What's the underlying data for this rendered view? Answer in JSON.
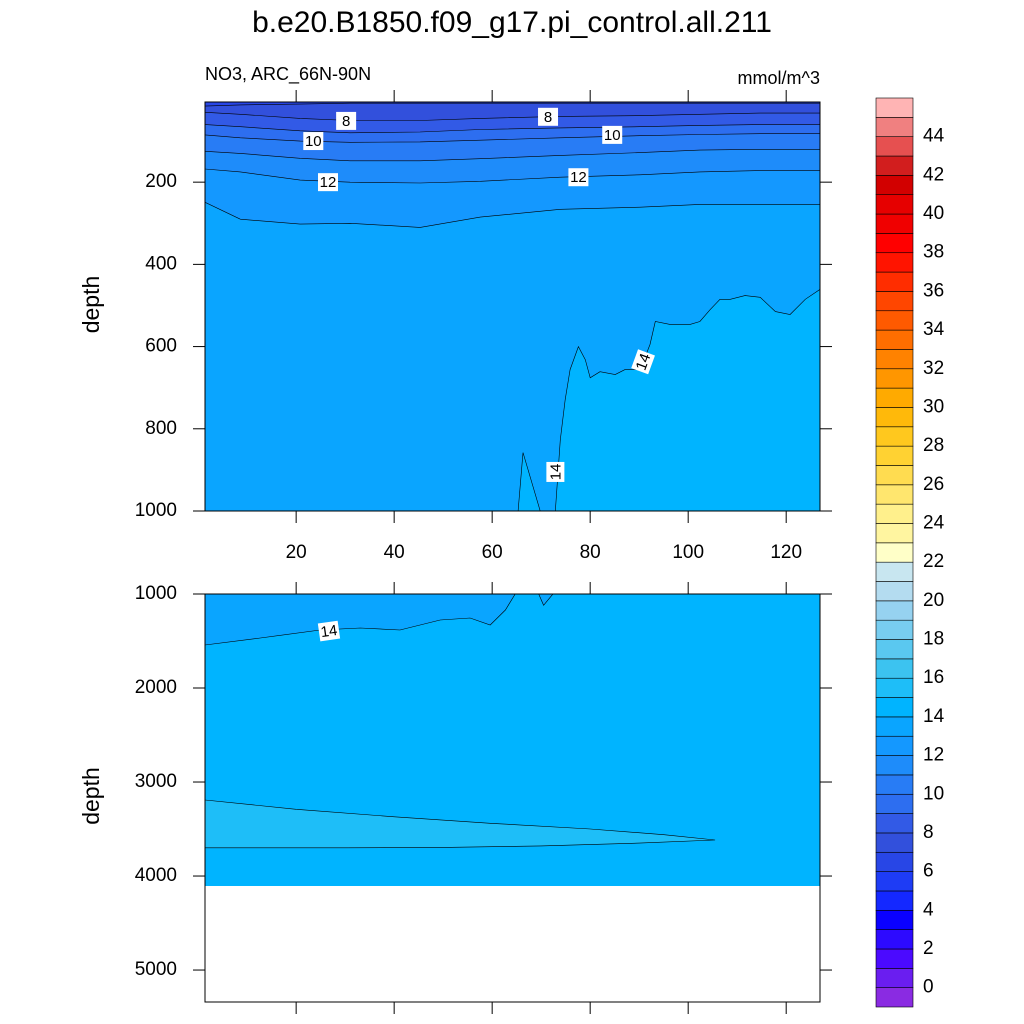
{
  "chart_data": {
    "type": "contour",
    "title": "b.e20.B1850.f09_g17.pi_control.all.211",
    "subtitle": "NO3, ARC_66N-90N",
    "units": "mmol/m^3",
    "panels": [
      {
        "ylabel": "depth",
        "xlim": [
          1.4,
          126.9
        ],
        "ylim": [
          5,
          1000
        ],
        "xticks": [
          20,
          40,
          60,
          80,
          100,
          120
        ],
        "yticks": [
          200,
          400,
          600,
          800,
          1000
        ],
        "xticklabels": true,
        "contours": [
          {
            "level": 7,
            "x": [
              1.4,
              8.6,
              20.8,
              31,
              45.3,
              57.6,
              73.9,
              90.2,
              102.4,
              114.7,
              126.9
            ],
            "depth": [
              15,
              12,
              10,
              8,
              8,
              8,
              8,
              8,
              8,
              8,
              8
            ]
          },
          {
            "level": 8,
            "x": [
              1.4,
              8.6,
              20.8,
              31,
              45.3,
              57.6,
              73.9,
              90.2,
              102.4,
              114.7,
              126.9
            ],
            "depth": [
              30,
              35,
              45,
              50,
              50,
              45,
              40,
              38,
              35,
              32,
              32
            ]
          },
          {
            "level": 9,
            "x": [
              1.4,
              8.6,
              20.8,
              31,
              45.3,
              57.6,
              73.9,
              90.2,
              102.4,
              114.7,
              126.9
            ],
            "depth": [
              60,
              65,
              75,
              80,
              78,
              72,
              68,
              65,
              62,
              60,
              60
            ]
          },
          {
            "level": 10,
            "x": [
              1.4,
              8.6,
              20.8,
              31,
              45.3,
              57.6,
              73.9,
              90.2,
              102.4,
              114.7,
              126.9
            ],
            "depth": [
              85,
              92,
              100,
              103,
              102,
              98,
              92,
              87,
              84,
              82,
              82
            ]
          },
          {
            "level": 11,
            "x": [
              1.4,
              8.6,
              20.8,
              31,
              45.3,
              57.6,
              73.9,
              90.2,
              102.4,
              114.7,
              126.9
            ],
            "depth": [
              125,
              130,
              142,
              148,
              148,
              143,
              135,
              128,
              122,
              120,
              120
            ]
          },
          {
            "level": 12,
            "x": [
              1.4,
              8.6,
              20.8,
              31,
              45.3,
              57.6,
              73.9,
              90.2,
              102.4,
              114.7,
              126.9
            ],
            "depth": [
              168,
              175,
              195,
              200,
              202,
              198,
              188,
              182,
              175,
              172,
              172
            ]
          },
          {
            "level": 13,
            "x": [
              1.4,
              8.6,
              20.8,
              31,
              45.3,
              57.6,
              73.9,
              90.2,
              102.4,
              114.7,
              126.9
            ],
            "depth": [
              249,
              290,
              302,
              300,
              310,
              285,
              266,
              261,
              254,
              254,
              254
            ]
          },
          {
            "level": 14,
            "x": [
              126.9,
              123.9,
              120.8,
              117.8,
              114.7,
              111.6,
              108.6,
              106.5,
              104.5,
              102.4,
              100.4,
              96.3,
              93.3,
              92.2,
              90.2,
              87.1,
              85.1,
              82.0,
              80.0,
              79.0,
              77.6,
              75.9,
              74.9,
              73.9,
              72.9,
              72.9,
              69.8,
              66.3,
              65.3,
              1.4
            ],
            "depth": [
              461,
              485,
              522,
              515,
              480,
              476,
              485,
              485,
              510,
              539,
              546,
              546,
              539,
              595,
              656,
              656,
              668,
              661,
              676,
              632,
              600,
              656,
              729,
              827,
              998,
              1000,
              1000,
              858,
              1000,
              1000
            ]
          }
        ]
      },
      {
        "ylabel": "depth",
        "xlim": [
          1.4,
          126.9
        ],
        "ylim": [
          1000,
          5340
        ],
        "xticks": [
          20,
          40,
          60,
          80,
          100,
          120
        ],
        "yticks": [
          1000,
          2000,
          3000,
          4000,
          5000
        ],
        "xticklabels": false,
        "data_depth_max": 4106,
        "contours": [
          {
            "level": 14,
            "x": [
              1.4,
              12.7,
              24.9,
              33.1,
              41.2,
              49.4,
              55.5,
              59.6,
              62.7,
              64.7,
              69.5,
              70.5,
              72.4
            ],
            "depth": [
              1543,
              1468,
              1383,
              1362,
              1383,
              1277,
              1255,
              1330,
              1170,
              1000,
              1000,
              1120,
              1000
            ]
          },
          {
            "level": 15,
            "x": [
              1.4,
              20,
              40,
              60,
              80,
              95,
              105.5,
              90,
              70,
              50,
              30,
              10,
              1.4
            ],
            "depth": [
              3191,
              3290,
              3370,
              3440,
              3500,
              3560,
              3617,
              3650,
              3680,
              3695,
              3700,
              3700,
              3700
            ]
          }
        ]
      }
    ],
    "colorbar": {
      "levels": [
        0,
        1,
        2,
        3,
        4,
        5,
        6,
        7,
        8,
        9,
        10,
        11,
        12,
        13,
        14,
        15,
        16,
        17,
        18,
        19,
        20,
        21,
        22,
        23,
        24,
        25,
        26,
        27,
        28,
        29,
        30,
        31,
        32,
        33,
        34,
        35,
        36,
        37,
        38,
        39,
        40,
        41,
        42,
        43,
        44,
        45
      ],
      "colors": [
        "#8a2be2",
        "#6a1ef0",
        "#4b0aff",
        "#2d0aff",
        "#0a00ff",
        "#1428ff",
        "#1e3cf5",
        "#2846e6",
        "#3250dc",
        "#325ae6",
        "#2d6ef0",
        "#287cf5",
        "#1e8cfa",
        "#1498ff",
        "#0aa5ff",
        "#00b4ff",
        "#1ebef8",
        "#3cc3f0",
        "#5ac8f0",
        "#78cdf0",
        "#96d2f0",
        "#b4dcf0",
        "#c8e6f0",
        "#ffffc8",
        "#fff5a0",
        "#fff08c",
        "#ffe66e",
        "#ffdc50",
        "#ffd232",
        "#ffc81e",
        "#ffb90a",
        "#ffaa00",
        "#ff9600",
        "#ff8200",
        "#ff6e00",
        "#ff5a00",
        "#ff4600",
        "#ff2d00",
        "#ff1400",
        "#ff0000",
        "#f00000",
        "#e60000",
        "#d20000",
        "#d21e1e",
        "#e65050",
        "#f08080",
        "#ffb4b4"
      ]
    }
  }
}
